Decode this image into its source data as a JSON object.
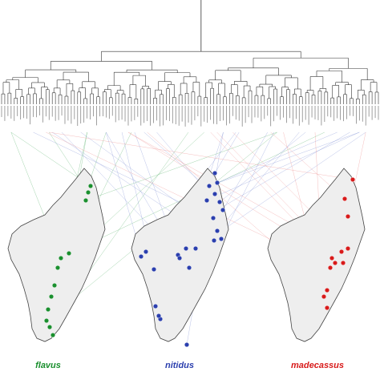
{
  "species": [
    {
      "id": "flavus",
      "label": "flavus",
      "color": "#1a8f2e",
      "line_color": "#57b06a"
    },
    {
      "id": "nitidus",
      "label": "nitidus",
      "color": "#2b3fae",
      "line_color": "#7f8fd6"
    },
    {
      "id": "madecassus",
      "label": "madecassus",
      "color": "#d81b1b",
      "line_color": "#ec8a8a"
    }
  ],
  "map_fill": "#eeeeee",
  "map_stroke": "#444444",
  "tree_color": "#333333",
  "leaf_count": 120
}
